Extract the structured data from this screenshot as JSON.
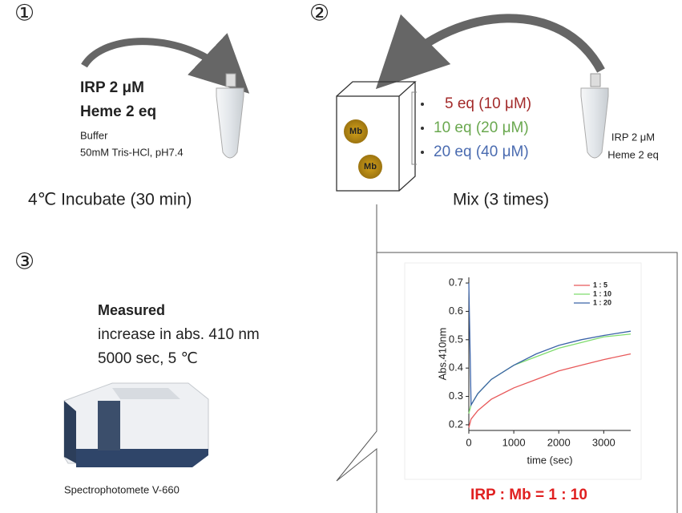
{
  "step1": {
    "number": "①",
    "line1": "IRP 2 μM",
    "line2": "Heme 2 eq",
    "buffer": "Buffer",
    "buffer_detail": "50mM Tris-HCl, pH7.4",
    "caption": "4℃ Incubate (30 min)"
  },
  "step2": {
    "number": "②",
    "mb_labels": [
      "Mb",
      "Mb"
    ],
    "options": [
      {
        "text": "5 eq (10 μM)",
        "color": "#a32b2b"
      },
      {
        "text": "10 eq (20 μM)",
        "color": "#6aa84f"
      },
      {
        "text": "20 eq (40 μM)",
        "color": "#4a6bb0"
      }
    ],
    "tube_line1": "IRP 2 μM",
    "tube_line2": "Heme 2 eq",
    "caption": "Mix (3 times)"
  },
  "step3": {
    "number": "③",
    "heading": "Measured",
    "line1": "increase in abs. 410 nm",
    "line2": "5000 sec, 5 ℃",
    "instrument": "Spectrophotomete V-660",
    "ratio": "IRP : Mb = 1 : 10"
  },
  "chart_data": {
    "type": "line",
    "x_label": "time (sec)",
    "y_label": "Abs.410nm",
    "x": [
      0,
      50,
      200,
      500,
      1000,
      1500,
      2000,
      2500,
      3000,
      3600
    ],
    "series": [
      {
        "name": "1 : 5",
        "color": "#e8595a",
        "values": [
          0.19,
          0.22,
          0.25,
          0.29,
          0.33,
          0.36,
          0.39,
          0.41,
          0.43,
          0.45
        ]
      },
      {
        "name": "1 : 10",
        "color": "#7fdc6e",
        "values": [
          0.24,
          0.27,
          0.31,
          0.36,
          0.41,
          0.44,
          0.47,
          0.49,
          0.51,
          0.52
        ]
      },
      {
        "name": "1 : 20",
        "color": "#3b63a8",
        "values": [
          0.7,
          0.27,
          0.31,
          0.36,
          0.41,
          0.45,
          0.48,
          0.5,
          0.515,
          0.53
        ]
      }
    ],
    "xlim": [
      0,
      3600
    ],
    "xticks": [
      0,
      1000,
      2000,
      3000
    ],
    "ylim": [
      0.18,
      0.72
    ],
    "yticks": [
      0.2,
      0.3,
      0.4,
      0.5,
      0.6,
      0.7
    ]
  }
}
